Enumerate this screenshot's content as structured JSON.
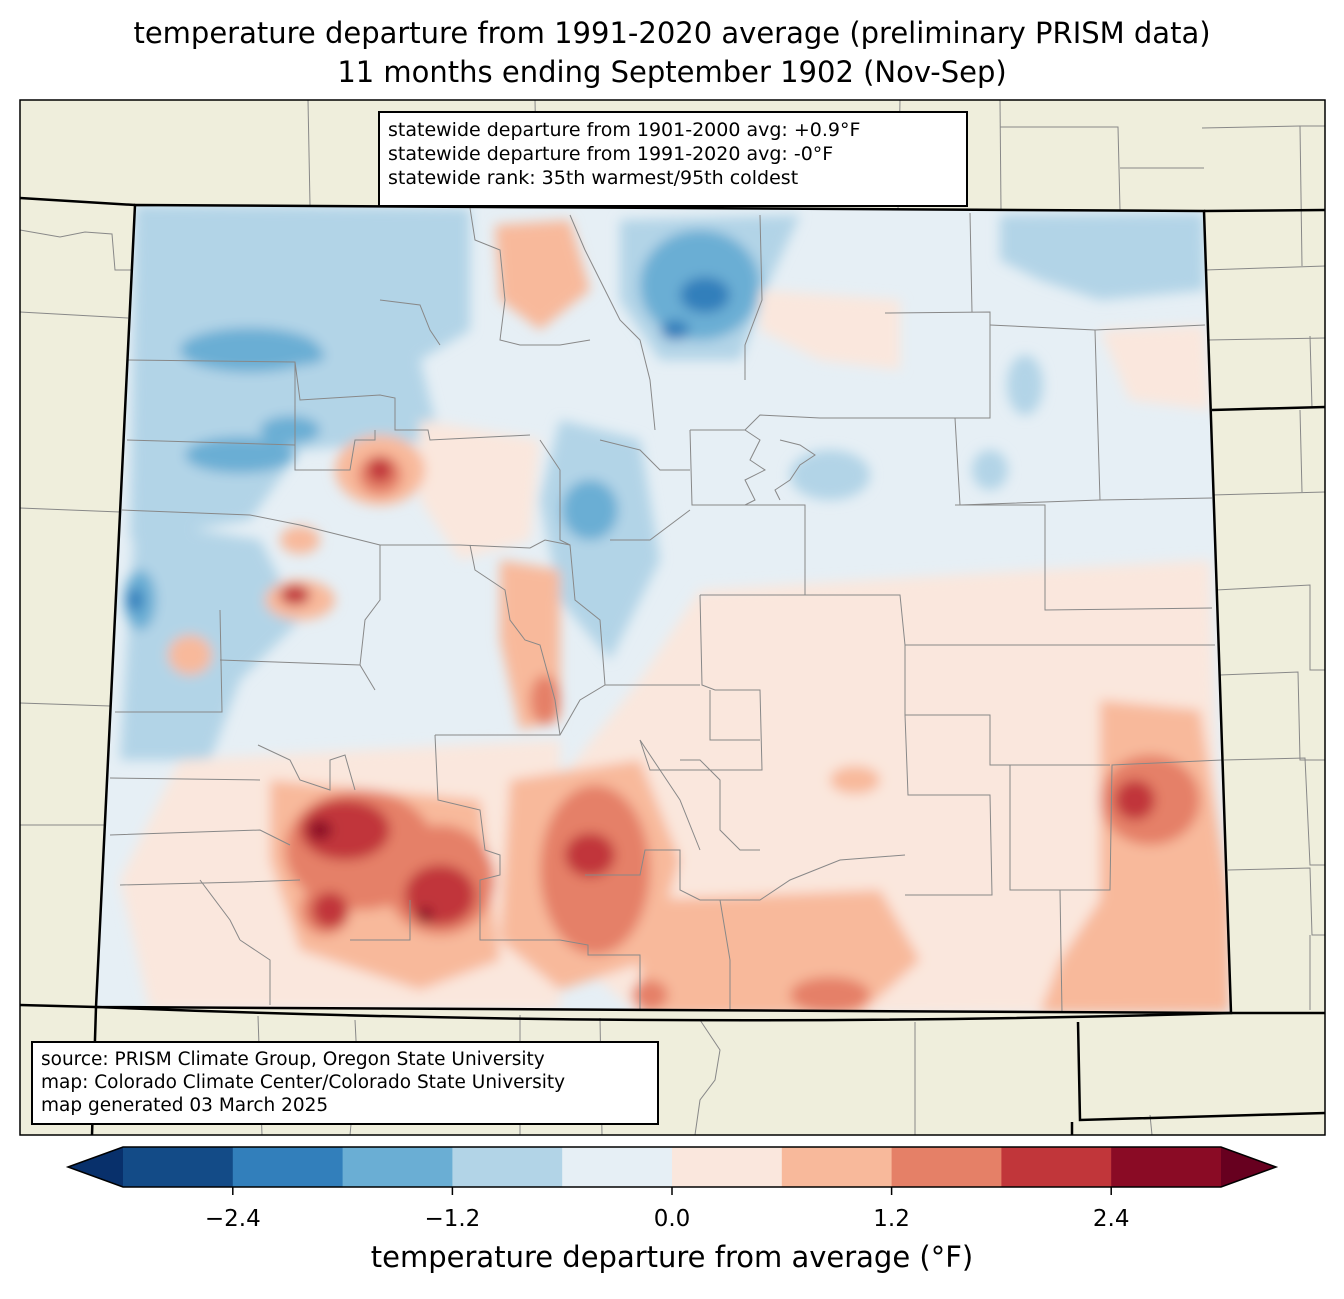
{
  "title": {
    "line1": "temperature departure from 1991-2020 average (preliminary PRISM data)",
    "line2": "11 months ending September 1902 (Nov-Sep)"
  },
  "stats_box": {
    "line1": "statewide departure from 1901-2000 avg: +0.9°F",
    "line2": "statewide departure from 1991-2020 avg: -0°F",
    "line3": "statewide rank: 35th warmest/95th coldest"
  },
  "source_box": {
    "line1": "source: PRISM Climate Group, Oregon State University",
    "line2": "map: Colorado Climate Center/Colorado State University",
    "line3": "map generated 03 March 2025"
  },
  "colorbar": {
    "label": "temperature departure from average (°F)",
    "ticks": [
      "−2.4",
      "−1.2",
      "0.0",
      "1.2",
      "2.4"
    ],
    "tick_values": [
      -2.4,
      -1.2,
      0.0,
      1.2,
      2.4
    ],
    "levels": [
      -3.0,
      -2.4,
      -1.8,
      -1.2,
      -0.6,
      0.0,
      0.6,
      1.2,
      1.8,
      2.4,
      3.0
    ],
    "colors": [
      "#08306b",
      "#134b87",
      "#327fbb",
      "#6aaed4",
      "#b2d4e7",
      "#e6eff5",
      "#fae7dd",
      "#f8b99b",
      "#e58067",
      "#c1363a",
      "#8a0b25",
      "#67001f"
    ]
  },
  "map": {
    "land_color": "#efeedc",
    "state": "Colorado"
  }
}
